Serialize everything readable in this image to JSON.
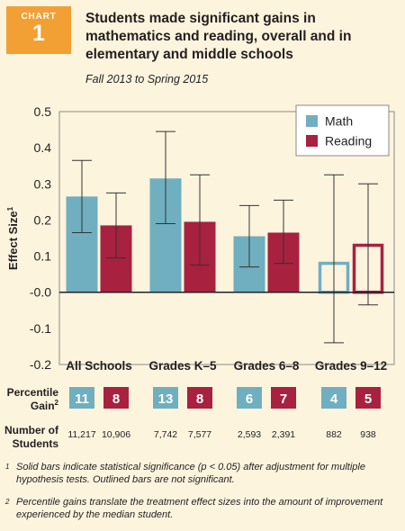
{
  "badge": {
    "label": "CHART",
    "number": "1"
  },
  "title": "Students made significant gains in mathematics and reading, overall and in elementary and middle schools",
  "subtitle": "Fall 2013 to Spring 2015",
  "chart_data": {
    "type": "bar",
    "ylabel": "Effect Size",
    "ylabel_sup": "1",
    "ylim": [
      -0.2,
      0.5
    ],
    "yticks": [
      "0.5",
      "0.4",
      "0.3",
      "0.2",
      "0.1",
      "-0.0",
      "-0.1",
      "-0.2"
    ],
    "ytick_values": [
      0.5,
      0.4,
      0.3,
      0.2,
      0.1,
      0.0,
      -0.1,
      -0.2
    ],
    "categories": [
      "All Schools",
      "Grades K–5",
      "Grades 6–8",
      "Grades 9–12"
    ],
    "series": [
      {
        "name": "Math",
        "color": "#6FAFBF",
        "values": [
          0.265,
          0.315,
          0.155,
          0.085
        ],
        "err_low": [
          0.165,
          0.19,
          0.07,
          -0.14
        ],
        "err_high": [
          0.365,
          0.445,
          0.24,
          0.325
        ],
        "significant": [
          true,
          true,
          true,
          false
        ],
        "percentile_gain": [
          "11",
          "13",
          "6",
          "4"
        ],
        "students": [
          "11,217",
          "7,742",
          "2,593",
          "882"
        ]
      },
      {
        "name": "Reading",
        "color": "#A8213F",
        "values": [
          0.185,
          0.195,
          0.165,
          0.135
        ],
        "err_low": [
          0.095,
          0.075,
          0.08,
          -0.035
        ],
        "err_high": [
          0.275,
          0.325,
          0.255,
          0.3
        ],
        "significant": [
          true,
          true,
          true,
          false
        ],
        "percentile_gain": [
          "8",
          "8",
          "7",
          "5"
        ],
        "students": [
          "10,906",
          "7,577",
          "2,391",
          "938"
        ]
      }
    ],
    "legend_position": "top-right",
    "row_labels": {
      "percentile_line1": "Percentile",
      "percentile_line2": "Gain",
      "percentile_sup": "2",
      "students_line1": "Number of",
      "students_line2": "Students"
    }
  },
  "footnotes": [
    {
      "mark": "1",
      "text": "Solid bars indicate statistical significance (p < 0.05) after adjustment for multiple hypothesis tests. Outlined bars are not significant."
    },
    {
      "mark": "2",
      "text": "Percentile gains translate the treatment effect sizes into the amount of improvement experienced by the median student."
    }
  ]
}
